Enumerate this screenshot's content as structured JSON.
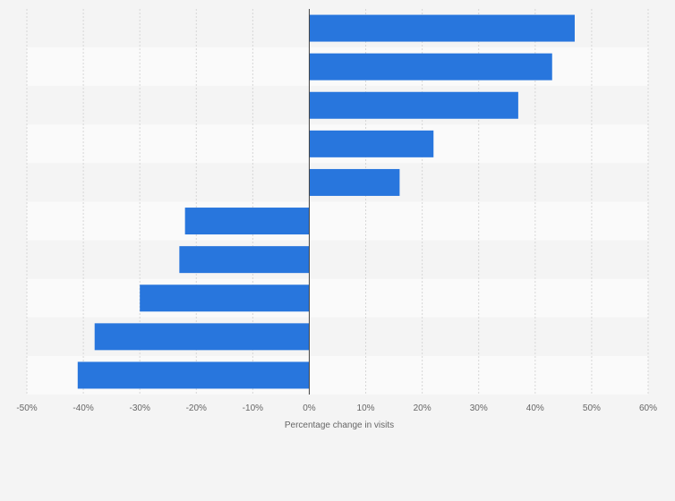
{
  "chart_data": {
    "type": "bar",
    "orientation": "horizontal",
    "title": "",
    "xlabel": "Percentage change in visits",
    "ylabel": "",
    "xlim": [
      -50,
      60
    ],
    "ticks": [
      -50,
      -40,
      -30,
      -20,
      -10,
      0,
      10,
      20,
      30,
      40,
      50,
      60
    ],
    "tick_labels": [
      "-50%",
      "-40%",
      "-30%",
      "-20%",
      "-10%",
      "0%",
      "10%",
      "20%",
      "30%",
      "40%",
      "50%",
      "60%"
    ],
    "categories": [
      "",
      "",
      "",
      "",
      "",
      "",
      "",
      "",
      "",
      ""
    ],
    "values": [
      47,
      43,
      37,
      22,
      16,
      -22,
      -23,
      -30,
      -38,
      -41
    ],
    "bar_color": "#2876dd",
    "grid": true
  }
}
